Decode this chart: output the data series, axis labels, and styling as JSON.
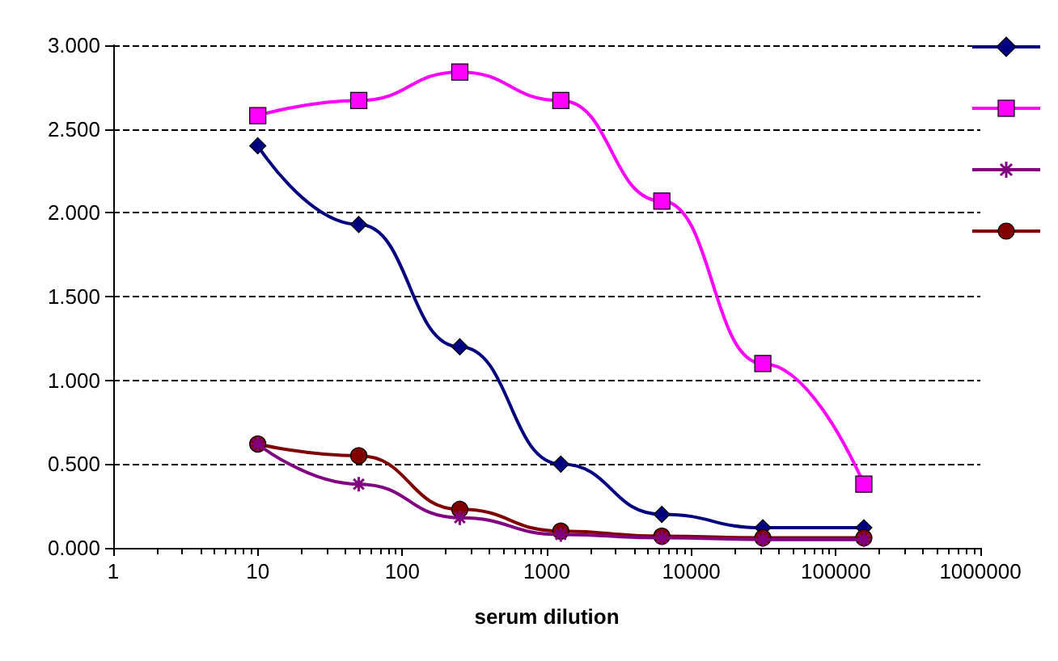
{
  "chart_data": {
    "type": "line",
    "xlabel": "serum dilution",
    "log": "x",
    "x": [
      10,
      50,
      250,
      1250,
      6250,
      31250,
      156250
    ],
    "xlim": [
      1,
      1000000
    ],
    "xticks": [
      1,
      10,
      100,
      1000,
      10000,
      100000,
      1000000
    ],
    "ylim": [
      0,
      3
    ],
    "yticks": [
      {
        "value": 0,
        "label": "0.000"
      },
      {
        "value": 0.5,
        "label": "0.500"
      },
      {
        "value": 1,
        "label": "1.000"
      },
      {
        "value": 1.5,
        "label": "1.500"
      },
      {
        "value": 2,
        "label": "2.000"
      },
      {
        "value": 2.5,
        "label": "2.500"
      },
      {
        "value": 3,
        "label": "3.000"
      }
    ],
    "grid": "y",
    "line_style": "solid",
    "series": [
      {
        "color": "#000080",
        "marker": "diamond",
        "values": [
          2.4,
          1.93,
          1.2,
          0.5,
          0.2,
          0.12,
          0.12
        ]
      },
      {
        "color": "#ff00ff",
        "marker": "square",
        "values": [
          2.58,
          2.67,
          2.84,
          2.67,
          2.07,
          1.1,
          0.38
        ]
      },
      {
        "color": "#800080",
        "marker": "cross",
        "values": [
          0.62,
          0.38,
          0.18,
          0.08,
          0.06,
          0.05,
          0.05
        ]
      },
      {
        "color": "#800000",
        "marker": "circle",
        "values": [
          0.62,
          0.55,
          0.23,
          0.1,
          0.07,
          0.06,
          0.06
        ]
      }
    ]
  }
}
